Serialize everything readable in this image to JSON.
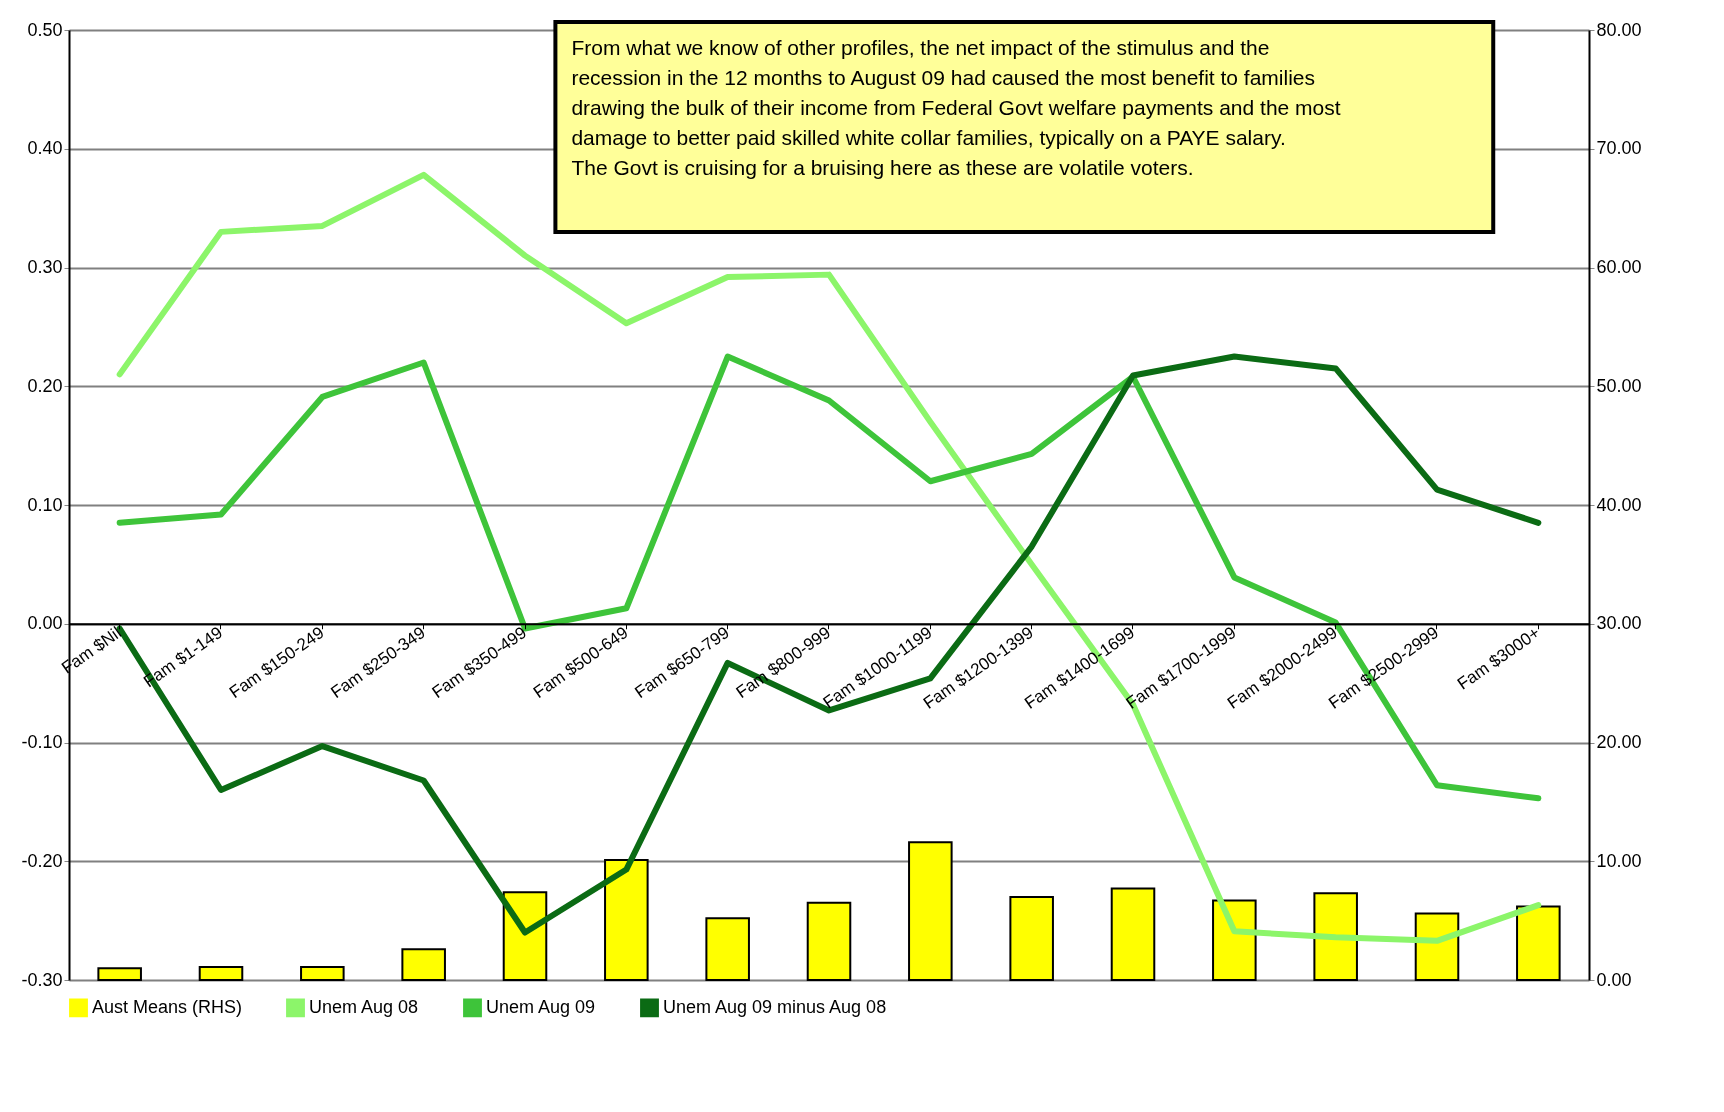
{
  "chart_data": {
    "type": "line",
    "categories": [
      "Fam $Nil",
      "Fam $1-149",
      "Fam $150-249",
      "Fam $250-349",
      "Fam $350-499",
      "Fam $500-649",
      "Fam $650-799",
      "Fam $800-999",
      "Fam $1000-1199",
      "Fam $1200-1399",
      "Fam $1400-1699",
      "Fam $1700-1999",
      "Fam $2000-2499",
      "Fam $2500-2999",
      "Fam $3000+"
    ],
    "series": [
      {
        "name": "Aust Means (RHS)",
        "type": "bar",
        "axis": "y2",
        "color": "#ffff00",
        "values": [
          1.0,
          1.1,
          1.1,
          2.6,
          7.4,
          10.1,
          5.2,
          6.5,
          11.6,
          7.0,
          7.7,
          6.7,
          7.3,
          5.6,
          6.2
        ]
      },
      {
        "name": "Unem Aug 08",
        "color": "#8cf56a",
        "values": [
          0.21,
          0.33,
          0.335,
          0.378,
          0.31,
          0.253,
          0.292,
          0.294,
          0.17,
          0.05,
          -0.068,
          -0.259,
          -0.264,
          -0.267,
          -0.237
        ]
      },
      {
        "name": "Unem Aug 09",
        "color": "#3ec43a",
        "values": [
          0.085,
          0.092,
          0.191,
          0.22,
          -0.004,
          0.013,
          0.225,
          0.188,
          0.12,
          0.143,
          0.208,
          0.039,
          0.001,
          -0.136,
          -0.147
        ]
      },
      {
        "name": "Unem Aug 09 minus Aug 08",
        "color": "#0b6b14",
        "values": [
          -0.004,
          -0.14,
          -0.103,
          -0.132,
          -0.26,
          -0.207,
          -0.033,
          -0.073,
          -0.046,
          0.065,
          0.209,
          0.225,
          0.215,
          0.113,
          0.085
        ]
      }
    ],
    "ylim": [
      -0.3,
      0.5
    ],
    "yticks": [
      {
        "value": -0.3,
        "label": "-0.30"
      },
      {
        "value": -0.2,
        "label": "-0.20"
      },
      {
        "value": -0.1,
        "label": "-0.10"
      },
      {
        "value": 0,
        "label": "0.00"
      },
      {
        "value": 0.1,
        "label": "0.10"
      },
      {
        "value": 0.2,
        "label": "0.20"
      },
      {
        "value": 0.3,
        "label": "0.30"
      },
      {
        "value": 0.4,
        "label": "0.40"
      },
      {
        "value": 0.5,
        "label": "0.50"
      }
    ],
    "y2lim": [
      0,
      80
    ],
    "y2ticks": [
      {
        "value": 0,
        "label": "0.00"
      },
      {
        "value": 10,
        "label": "10.00"
      },
      {
        "value": 20,
        "label": "20.00"
      },
      {
        "value": 30,
        "label": "30.00"
      },
      {
        "value": 40,
        "label": "40.00"
      },
      {
        "value": 50,
        "label": "50.00"
      },
      {
        "value": 60,
        "label": "60.00"
      },
      {
        "value": 70,
        "label": "70.00"
      },
      {
        "value": 80,
        "label": "80.00"
      }
    ],
    "grid": "y",
    "legend": "bottom",
    "marker": "none",
    "line_style": "solid",
    "annotations": [
      "From what we know of other profiles, the net impact of the stimulus and the recession in the 12 months to August 09 had caused the most benefit to families drawing the bulk of their income from Federal Govt welfare payments and the most damage to better paid skilled white collar families, typically on a PAYE salary.",
      "The Govt is cruising for a bruising here as these are volatile voters."
    ]
  }
}
